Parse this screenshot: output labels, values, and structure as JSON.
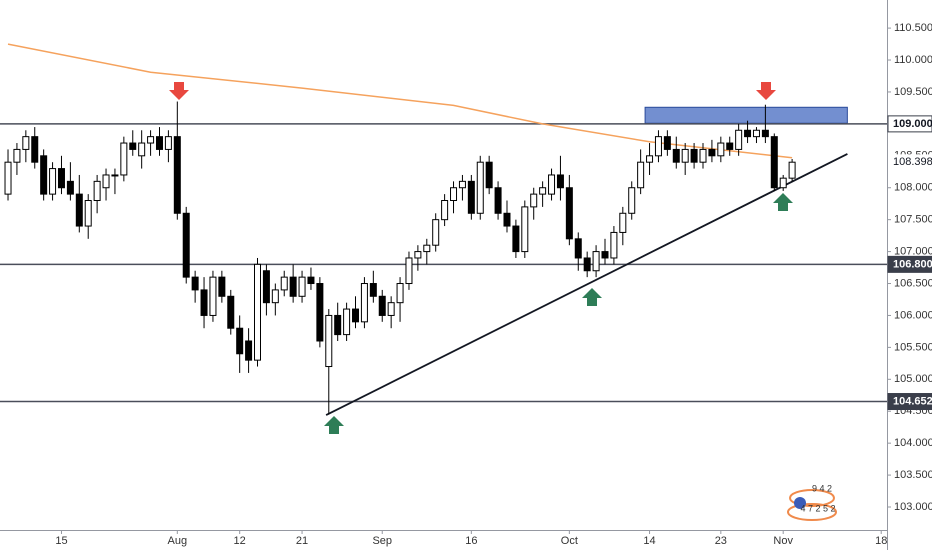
{
  "chart_data": {
    "type": "candlestick",
    "categories": [
      null,
      null,
      null,
      null,
      null,
      null,
      "15",
      null,
      null,
      null,
      null,
      null,
      null,
      null,
      null,
      null,
      null,
      null,
      null,
      "Aug",
      null,
      null,
      null,
      null,
      null,
      null,
      "12",
      null,
      null,
      null,
      null,
      null,
      null,
      "21",
      null,
      null,
      null,
      null,
      null,
      null,
      null,
      null,
      "Sep",
      null,
      null,
      null,
      null,
      null,
      null,
      null,
      null,
      null,
      "16",
      null,
      null,
      null,
      null,
      null,
      null,
      null,
      null,
      null,
      null,
      "Oct",
      null,
      null,
      null,
      null,
      null,
      null,
      null,
      null,
      "14",
      null,
      null,
      null,
      null,
      null,
      null,
      null,
      "23",
      null,
      null,
      null,
      null,
      null,
      null,
      "Nov",
      null,
      null,
      null,
      null,
      null,
      null,
      null,
      null,
      null,
      null,
      "18"
    ],
    "open": [
      107.9,
      108.4,
      108.6,
      108.8,
      108.5,
      107.9,
      108.3,
      108.1,
      107.9,
      107.4,
      107.8,
      108.0,
      108.2,
      108.2,
      108.7,
      108.5,
      108.7,
      108.8,
      108.6,
      108.8,
      107.6,
      106.6,
      106.4,
      106.0,
      106.6,
      106.3,
      105.8,
      105.6,
      105.3,
      106.7,
      106.2,
      106.4,
      106.6,
      106.3,
      106.6,
      106.5,
      105.2,
      106.0,
      105.7,
      106.1,
      105.9,
      106.5,
      106.3,
      106.0,
      106.2,
      106.5,
      106.9,
      107.0,
      107.1,
      107.5,
      107.8,
      108.0,
      108.1,
      107.6,
      108.4,
      108.0,
      107.6,
      107.4,
      107.0,
      107.7,
      107.9,
      107.9,
      108.2,
      108.0,
      107.2,
      106.9,
      106.7,
      107.0,
      106.9,
      107.3,
      107.6,
      108.0,
      108.4,
      108.5,
      108.8,
      108.6,
      108.4,
      108.6,
      108.4,
      108.6,
      108.5,
      108.7,
      108.6,
      108.9,
      108.8,
      108.9,
      108.8,
      108.0,
      108.15,
      null,
      null,
      null,
      null,
      null,
      null,
      null,
      null,
      null,
      null
    ],
    "high": [
      108.6,
      108.7,
      108.9,
      108.95,
      108.6,
      108.4,
      108.5,
      108.4,
      108.2,
      107.9,
      108.2,
      108.3,
      108.3,
      108.8,
      108.9,
      108.9,
      108.9,
      108.95,
      108.9,
      109.35,
      107.7,
      106.7,
      106.6,
      106.7,
      106.7,
      106.4,
      106.0,
      105.8,
      106.9,
      106.8,
      106.5,
      106.7,
      106.8,
      106.7,
      106.75,
      106.6,
      106.1,
      106.2,
      106.2,
      106.3,
      106.6,
      106.7,
      106.4,
      106.3,
      106.6,
      107.0,
      107.1,
      107.2,
      107.6,
      107.9,
      108.1,
      108.2,
      108.2,
      108.5,
      108.5,
      108.1,
      107.8,
      107.5,
      107.8,
      108.0,
      108.1,
      108.3,
      108.5,
      108.2,
      107.3,
      107.0,
      107.1,
      107.2,
      107.4,
      107.7,
      108.1,
      108.6,
      108.7,
      108.9,
      108.9,
      108.8,
      108.7,
      108.7,
      108.7,
      108.75,
      108.8,
      108.8,
      109.0,
      109.05,
      108.95,
      109.3,
      108.85,
      108.2,
      108.45,
      null,
      null,
      null,
      null,
      null,
      null,
      null,
      null,
      null,
      null
    ],
    "low": [
      107.8,
      108.2,
      108.4,
      108.3,
      107.8,
      107.8,
      107.9,
      107.8,
      107.3,
      107.2,
      107.6,
      107.8,
      107.9,
      108.1,
      108.5,
      108.3,
      108.5,
      108.5,
      108.4,
      107.5,
      106.5,
      106.2,
      105.8,
      105.9,
      106.2,
      105.7,
      105.1,
      105.1,
      105.2,
      106.0,
      106.0,
      106.3,
      106.2,
      106.2,
      106.4,
      105.5,
      104.45,
      105.6,
      105.6,
      105.8,
      105.8,
      106.2,
      105.9,
      105.8,
      105.9,
      106.4,
      106.7,
      106.8,
      107.0,
      107.4,
      107.6,
      107.8,
      107.5,
      107.5,
      107.9,
      107.5,
      107.3,
      106.9,
      106.9,
      107.5,
      107.7,
      107.8,
      107.8,
      107.1,
      106.7,
      106.6,
      106.6,
      106.8,
      106.8,
      107.1,
      107.5,
      107.9,
      108.2,
      108.4,
      108.5,
      108.3,
      108.2,
      108.3,
      108.3,
      108.4,
      108.4,
      108.5,
      108.5,
      108.7,
      108.7,
      108.7,
      107.95,
      107.95,
      108.1,
      null,
      null,
      null,
      null,
      null,
      null,
      null,
      null,
      null,
      null
    ],
    "close": [
      108.4,
      108.6,
      108.8,
      108.4,
      107.9,
      108.3,
      108.0,
      107.9,
      107.4,
      107.8,
      108.1,
      108.2,
      108.2,
      108.7,
      108.6,
      108.7,
      108.8,
      108.6,
      108.8,
      107.6,
      106.6,
      106.4,
      106.0,
      106.6,
      106.3,
      105.8,
      105.4,
      105.3,
      106.8,
      106.2,
      106.4,
      106.6,
      106.3,
      106.6,
      106.5,
      105.6,
      106.0,
      105.7,
      106.1,
      105.9,
      106.5,
      106.3,
      106.0,
      106.2,
      106.5,
      106.9,
      107.0,
      107.1,
      107.5,
      107.8,
      108.0,
      108.1,
      107.6,
      108.4,
      108.0,
      107.6,
      107.4,
      107.0,
      107.7,
      107.9,
      108.0,
      108.2,
      108.0,
      107.2,
      106.9,
      106.7,
      107.0,
      106.9,
      107.3,
      107.6,
      108.0,
      108.4,
      108.5,
      108.8,
      108.6,
      108.4,
      108.6,
      108.4,
      108.6,
      108.5,
      108.7,
      108.6,
      108.9,
      108.8,
      108.9,
      108.8,
      108.0,
      108.15,
      108.4,
      null,
      null,
      null,
      null,
      null,
      null,
      null,
      null,
      null,
      null
    ],
    "up_color": "#ffffff",
    "down_color": "#000000",
    "xlim": [
      -0.9,
      98.65
    ],
    "ylim": [
      102.64,
      110.94
    ],
    "yticks": [
      {
        "value": 103.0,
        "label": "103.000"
      },
      {
        "value": 103.5,
        "label": "103.500"
      },
      {
        "value": 104.0,
        "label": "104.000"
      },
      {
        "value": 104.5,
        "label": "104.500"
      },
      {
        "value": 105.0,
        "label": "105.000"
      },
      {
        "value": 105.5,
        "label": "105.500"
      },
      {
        "value": 106.0,
        "label": "106.000"
      },
      {
        "value": 106.5,
        "label": "106.500"
      },
      {
        "value": 107.0,
        "label": "107.000"
      },
      {
        "value": 107.5,
        "label": "107.500"
      },
      {
        "value": 108.0,
        "label": "108.000"
      },
      {
        "value": 108.5,
        "label": "108.500"
      },
      {
        "value": 109.0,
        "label": "109.000"
      },
      {
        "value": 109.5,
        "label": "109.500"
      },
      {
        "value": 110.0,
        "label": "110.000"
      },
      {
        "value": 110.5,
        "label": "110.500"
      }
    ],
    "ma": {
      "color": "#f5a25d",
      "x": [
        0,
        16,
        33,
        50,
        60,
        72,
        88
      ],
      "values": [
        110.25,
        109.81,
        109.56,
        109.29,
        109.0,
        108.72,
        108.47
      ]
    },
    "trendline": {
      "color": "#131722",
      "x": [
        35.7,
        94.2
      ],
      "values": [
        104.44,
        108.53
      ]
    },
    "zone": {
      "color": "#5b7bc8",
      "x": [
        71.5,
        94.2
      ],
      "y": [
        109.01,
        109.26
      ]
    },
    "price_lines": [
      {
        "value": 109.0,
        "label": "109.000",
        "style": "light"
      },
      {
        "value": 106.8,
        "label": "106.800",
        "style": "dark"
      },
      {
        "value": 104.652,
        "label": "104.652",
        "style": "dark"
      }
    ],
    "last_price": {
      "value": 108.398,
      "label": "108.398"
    },
    "watermark": [
      "9 4 2",
      "4 7 2 5 2"
    ]
  }
}
